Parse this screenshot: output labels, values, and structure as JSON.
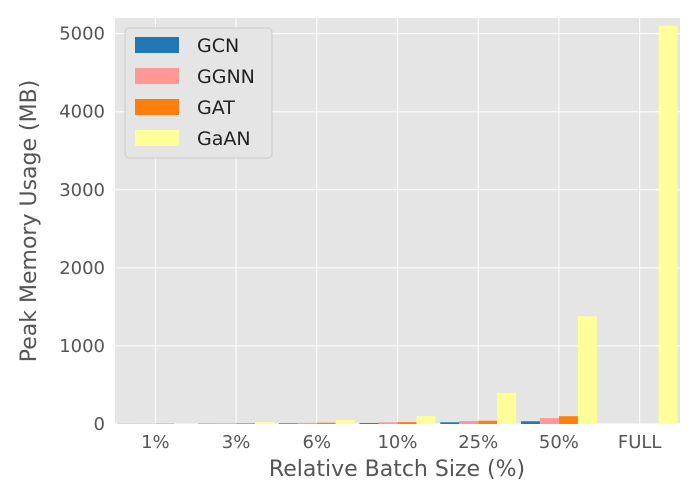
{
  "chart_data": {
    "type": "bar",
    "xlabel": "Relative Batch Size (%)",
    "ylabel": "Peak Memory Usage (MB)",
    "categories": [
      "1%",
      "3%",
      "6%",
      "10%",
      "25%",
      "50%",
      "FULL"
    ],
    "ylim": [
      0,
      5200
    ],
    "yticks": [
      0,
      1000,
      2000,
      3000,
      4000,
      5000
    ],
    "grid": true,
    "legend_position": "top-left",
    "series": [
      {
        "name": "GCN",
        "color": "#1f77b4",
        "values": [
          2,
          4,
          8,
          12,
          22,
          35,
          0
        ]
      },
      {
        "name": "GGNN",
        "color": "#ff9896",
        "values": [
          4,
          8,
          14,
          22,
          38,
          75,
          0
        ]
      },
      {
        "name": "GAT",
        "color": "#ff7f0e",
        "values": [
          5,
          10,
          16,
          24,
          42,
          100,
          0
        ]
      },
      {
        "name": "GaAN",
        "color": "#ffff99",
        "values": [
          8,
          25,
          50,
          100,
          400,
          1380,
          5100
        ]
      }
    ]
  }
}
